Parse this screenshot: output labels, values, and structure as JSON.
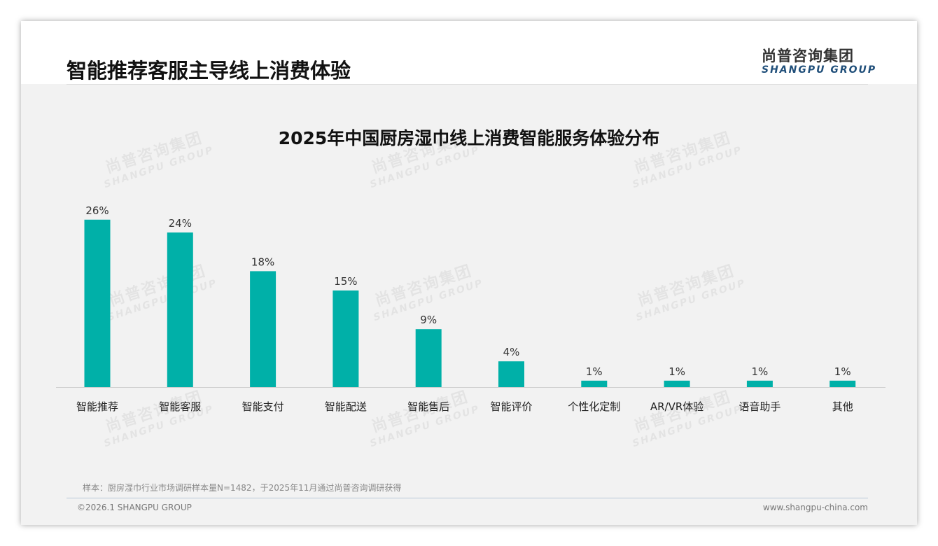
{
  "header": {
    "title": "智能推荐客服主导线上消费体验",
    "logo_cn": "尚普咨询集团",
    "logo_en": "SHANGPU GROUP"
  },
  "watermark": {
    "cn": "尚普咨询集团",
    "en": "SHANGPU GROUP"
  },
  "chart_data": {
    "type": "bar",
    "title": "2025年中国厨房湿巾线上消费智能服务体验分布",
    "categories": [
      "智能推荐",
      "智能客服",
      "智能支付",
      "智能配送",
      "智能售后",
      "智能评价",
      "个性化定制",
      "AR/VR体验",
      "语音助手",
      "其他"
    ],
    "values": [
      26,
      24,
      18,
      15,
      9,
      4,
      1,
      1,
      1,
      1
    ],
    "value_labels": [
      "26%",
      "24%",
      "18%",
      "15%",
      "9%",
      "4%",
      "1%",
      "1%",
      "1%",
      "1%"
    ],
    "xlabel": "",
    "ylabel": "",
    "ylim": [
      0,
      28
    ],
    "grid": false,
    "legend": "none",
    "bar_color": "#00b0a8"
  },
  "footer": {
    "note": "样本：厨房湿巾行业市场调研样本量N=1482，于2025年11月通过尚普咨询调研获得",
    "copyright": "©2026.1 SHANGPU GROUP",
    "url": "www.shangpu-china.com"
  }
}
